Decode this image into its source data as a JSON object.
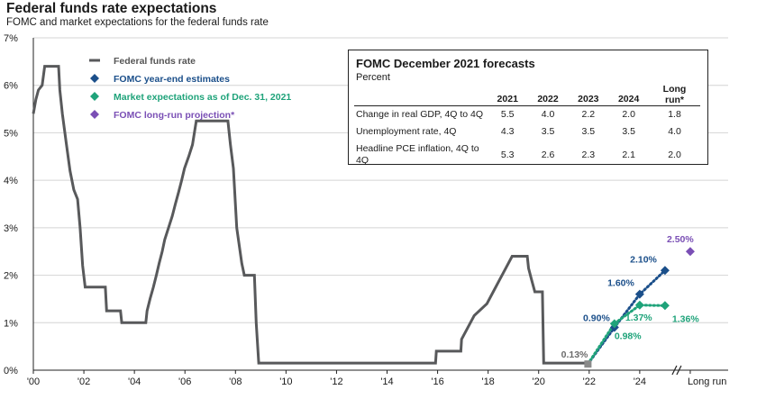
{
  "title": "Federal funds rate expectations",
  "subtitle": "FOMC and market expectations for the federal funds rate",
  "legend": [
    {
      "label": "Federal funds rate",
      "color": "#58595b",
      "marker": "line"
    },
    {
      "label": "FOMC year-end estimates",
      "color": "#1b4f8a",
      "marker": "diamond"
    },
    {
      "label": "Market expectations as of Dec. 31, 2021",
      "color": "#1fa37a",
      "marker": "diamond"
    },
    {
      "label": "FOMC long-run projection*",
      "color": "#7a4fb5",
      "marker": "diamond"
    }
  ],
  "forecast_table": {
    "title": "FOMC December 2021 forecasts",
    "subtitle": "Percent",
    "columns": [
      "",
      "2021",
      "2022",
      "2023",
      "2024",
      "Long run*"
    ],
    "rows": [
      {
        "label": "Change in real GDP, 4Q to 4Q",
        "values": [
          "5.5",
          "4.0",
          "2.2",
          "2.0",
          "1.8"
        ]
      },
      {
        "label": "Unemployment rate, 4Q",
        "values": [
          "4.3",
          "3.5",
          "3.5",
          "3.5",
          "4.0"
        ]
      },
      {
        "label": "Headline PCE inflation, 4Q to 4Q",
        "values": [
          "5.3",
          "2.6",
          "2.3",
          "2.1",
          "2.0"
        ]
      }
    ]
  },
  "chart_data": {
    "type": "line",
    "ylim": [
      0,
      7
    ],
    "xlim": [
      2000,
      2027.5
    ],
    "y_ticks": [
      "0%",
      "1%",
      "2%",
      "3%",
      "4%",
      "5%",
      "6%",
      "7%"
    ],
    "x_ticks": [
      "'00",
      "'02",
      "'04",
      "'06",
      "'08",
      "'10",
      "'12",
      "'14",
      "'16",
      "'18",
      "'20",
      "'22",
      "'24",
      "Long run"
    ],
    "series": [
      {
        "name": "Federal funds rate",
        "color": "#58595b",
        "style": "step",
        "points": [
          [
            2000.0,
            5.4
          ],
          [
            2000.1,
            5.7
          ],
          [
            2000.2,
            5.9
          ],
          [
            2000.35,
            6.0
          ],
          [
            2000.45,
            6.4
          ],
          [
            2001.0,
            6.4
          ],
          [
            2001.05,
            5.9
          ],
          [
            2001.15,
            5.4
          ],
          [
            2001.3,
            4.8
          ],
          [
            2001.45,
            4.2
          ],
          [
            2001.6,
            3.8
          ],
          [
            2001.75,
            3.6
          ],
          [
            2001.85,
            3.0
          ],
          [
            2001.95,
            2.2
          ],
          [
            2002.05,
            1.75
          ],
          [
            2002.85,
            1.75
          ],
          [
            2002.9,
            1.25
          ],
          [
            2003.45,
            1.25
          ],
          [
            2003.5,
            1.0
          ],
          [
            2004.45,
            1.0
          ],
          [
            2004.5,
            1.25
          ],
          [
            2004.62,
            1.5
          ],
          [
            2004.75,
            1.75
          ],
          [
            2004.87,
            2.0
          ],
          [
            2004.98,
            2.25
          ],
          [
            2005.1,
            2.5
          ],
          [
            2005.2,
            2.75
          ],
          [
            2005.35,
            3.0
          ],
          [
            2005.5,
            3.25
          ],
          [
            2005.62,
            3.5
          ],
          [
            2005.75,
            3.75
          ],
          [
            2005.87,
            4.0
          ],
          [
            2005.98,
            4.25
          ],
          [
            2006.15,
            4.5
          ],
          [
            2006.3,
            4.75
          ],
          [
            2006.45,
            5.25
          ],
          [
            2007.7,
            5.25
          ],
          [
            2007.8,
            4.75
          ],
          [
            2007.92,
            4.25
          ],
          [
            2008.05,
            3.0
          ],
          [
            2008.25,
            2.25
          ],
          [
            2008.35,
            2.0
          ],
          [
            2008.75,
            2.0
          ],
          [
            2008.82,
            1.0
          ],
          [
            2008.92,
            0.15
          ],
          [
            2015.92,
            0.15
          ],
          [
            2015.95,
            0.4
          ],
          [
            2016.92,
            0.4
          ],
          [
            2016.95,
            0.65
          ],
          [
            2017.2,
            0.9
          ],
          [
            2017.45,
            1.15
          ],
          [
            2017.95,
            1.4
          ],
          [
            2018.2,
            1.65
          ],
          [
            2018.45,
            1.9
          ],
          [
            2018.7,
            2.15
          ],
          [
            2018.95,
            2.4
          ],
          [
            2019.55,
            2.4
          ],
          [
            2019.6,
            2.15
          ],
          [
            2019.72,
            1.9
          ],
          [
            2019.85,
            1.65
          ],
          [
            2020.15,
            1.65
          ],
          [
            2020.2,
            0.15
          ],
          [
            2021.95,
            0.15
          ]
        ]
      },
      {
        "name": "FOMC year-end estimates",
        "color": "#1b4f8a",
        "style": "dotted-diamond",
        "points": [
          [
            2021.95,
            0.13
          ],
          [
            2023.0,
            0.9
          ],
          [
            2024.0,
            1.6
          ],
          [
            2025.0,
            2.1
          ]
        ],
        "labels": [
          "0.13%",
          "0.90%",
          "1.60%",
          "2.10%"
        ]
      },
      {
        "name": "Market expectations as of Dec. 31, 2021",
        "color": "#1fa37a",
        "style": "dotted-diamond",
        "points": [
          [
            2021.95,
            0.13
          ],
          [
            2023.0,
            0.98
          ],
          [
            2024.0,
            1.37
          ],
          [
            2025.0,
            1.36
          ]
        ],
        "labels": [
          "",
          "0.98%",
          "1.37%",
          "1.36%"
        ]
      },
      {
        "name": "FOMC long-run projection*",
        "color": "#7a4fb5",
        "style": "diamond",
        "points": [
          [
            2026.0,
            2.5
          ]
        ],
        "labels": [
          "2.50%"
        ]
      }
    ]
  }
}
